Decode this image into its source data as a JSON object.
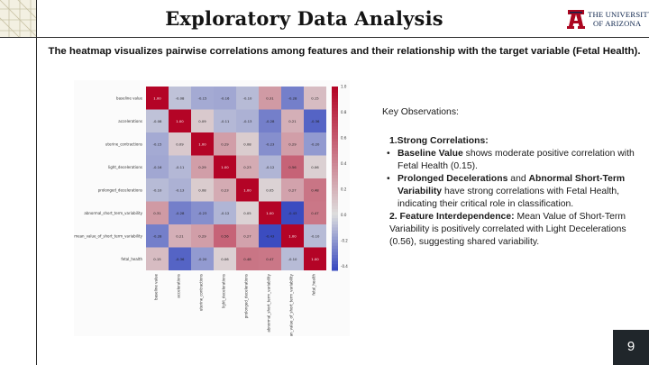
{
  "slide": {
    "title": "Exploratory Data Analysis",
    "subtitle": "The heatmap visualizes pairwise correlations among features and their relationship with the target variable (Fetal Health).",
    "page_number": "9"
  },
  "logo": {
    "line1": "THE UNIVERSITY",
    "line2": "OF ARIZONA",
    "colors": {
      "navy": "#0c234b",
      "red": "#ab0520"
    }
  },
  "observations": {
    "heading": "Key Observations:",
    "section1_title": "1.Strong Correlations:",
    "bullet1": {
      "bold": "Baseline Value",
      "text": " shows moderate positive correlation with Fetal Health (0.15)."
    },
    "bullet2": {
      "bold1": "Prolonged Decelerations",
      "mid": " and ",
      "bold2": "Abnormal Short-Term Variability",
      "text": " have strong correlations with Fetal Health, indicating their critical role in classification."
    },
    "section2_title": "2. Feature Interdependence:",
    "section2_text": " Mean Value of Short-Term Variability is positively correlated with Light Decelerations (0.56), suggesting shared variability."
  },
  "chart_data": {
    "type": "heatmap",
    "features": [
      "baseline value",
      "accelerations",
      "uterine_contractions",
      "light_decelerations",
      "prolonged_decelerations",
      "abnormal_short_term_variability",
      "mean_value_of_short_term_variability",
      "fetal_health"
    ],
    "matrix": [
      [
        1.0,
        -0.08,
        -0.15,
        -0.16,
        -0.1,
        0.31,
        -0.28,
        0.15
      ],
      [
        -0.08,
        1.0,
        0.09,
        -0.11,
        -0.13,
        -0.28,
        0.21,
        -0.36
      ],
      [
        -0.15,
        0.09,
        1.0,
        0.29,
        0.08,
        -0.23,
        0.29,
        -0.2
      ],
      [
        -0.16,
        -0.11,
        0.29,
        1.0,
        0.23,
        -0.12,
        0.56,
        0.06
      ],
      [
        -0.1,
        -0.13,
        0.08,
        0.23,
        1.0,
        0.05,
        0.27,
        0.48
      ],
      [
        0.31,
        -0.28,
        -0.23,
        -0.12,
        0.05,
        1.0,
        -0.43,
        0.47
      ],
      [
        -0.28,
        0.21,
        0.29,
        0.56,
        0.27,
        -0.43,
        1.0,
        -0.1
      ],
      [
        0.15,
        -0.36,
        -0.2,
        0.06,
        0.48,
        0.47,
        -0.1,
        1.0
      ]
    ],
    "colorbar_ticks": [
      1.0,
      0.8,
      0.6,
      0.4,
      0.2,
      0.0,
      -0.2,
      -0.4
    ],
    "colorbar_range": [
      -0.43,
      1.0
    ],
    "colormap": "coolwarm",
    "colors": {
      "negative": "#3b4cc0",
      "neutral": "#dddddd",
      "positive": "#b40426"
    }
  }
}
